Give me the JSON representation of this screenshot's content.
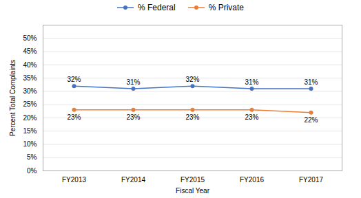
{
  "chart_data": {
    "type": "line",
    "categories": [
      "FY2013",
      "FY2014",
      "FY2015",
      "FY2016",
      "FY2017"
    ],
    "series": [
      {
        "name": "% Federal",
        "color": "#4472C4",
        "marker": "circle",
        "values": [
          0.32,
          0.31,
          0.32,
          0.31,
          0.31
        ],
        "value_labels": [
          "32%",
          "31%",
          "32%",
          "31%",
          "31%"
        ]
      },
      {
        "name": "% Private",
        "color": "#ED7D31",
        "marker": "circle",
        "values": [
          0.23,
          0.23,
          0.23,
          0.23,
          0.22
        ],
        "value_labels": [
          "23%",
          "23%",
          "23%",
          "23%",
          "22%"
        ]
      }
    ],
    "x_label": "Fiscal Year",
    "y_label": "Percent Total Complaints",
    "ylim": [
      0.0,
      0.55
    ],
    "yticks": [
      {
        "value": 0.0,
        "label": "0%"
      },
      {
        "value": 0.05,
        "label": "5%"
      },
      {
        "value": 0.1,
        "label": "10%"
      },
      {
        "value": 0.15,
        "label": "15%"
      },
      {
        "value": 0.2,
        "label": "20%"
      },
      {
        "value": 0.25,
        "label": "25%"
      },
      {
        "value": 0.3,
        "label": "30%"
      },
      {
        "value": 0.35,
        "label": "35%"
      },
      {
        "value": 0.4,
        "label": "40%"
      },
      {
        "value": 0.45,
        "label": "45%"
      },
      {
        "value": 0.5,
        "label": "50%"
      }
    ],
    "grid": true,
    "legend": "top",
    "data_labels": true
  }
}
